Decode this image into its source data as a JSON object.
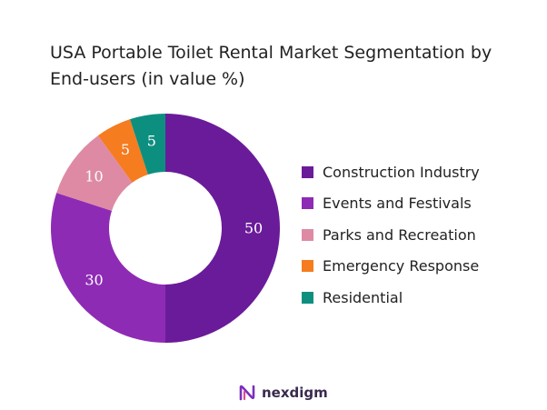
{
  "chart_data": {
    "type": "pie",
    "donut": true,
    "title": "USA Portable Toilet Rental Market Segmentation by End-users (in value %)",
    "categories": [
      "Construction Industry",
      "Events and Festivals",
      "Parks and Recreation",
      "Emergency Response",
      "Residential"
    ],
    "values": [
      50,
      30,
      10,
      5,
      5
    ],
    "colors": [
      "#6a1b9a",
      "#8e2bb5",
      "#de8aa5",
      "#f57c1f",
      "#0d8f80"
    ],
    "data_labels": [
      "50",
      "30",
      "10",
      "5",
      "5"
    ],
    "legend_position": "right"
  },
  "brand": {
    "name": "nexdigm"
  }
}
